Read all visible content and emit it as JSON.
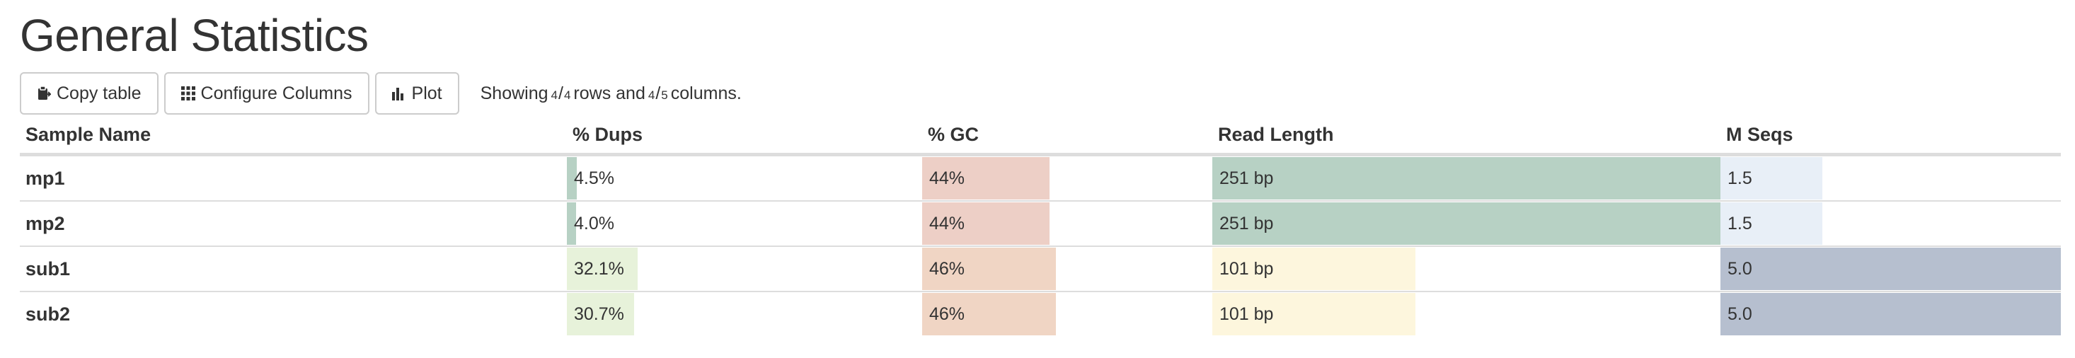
{
  "page": {
    "title": "General Statistics"
  },
  "toolbar": {
    "copy_label": "Copy table",
    "configure_label": "Configure Columns",
    "plot_label": "Plot",
    "status_prefix": "Showing",
    "rows_shown": "4",
    "rows_total": "4",
    "rows_word": "rows and",
    "cols_shown": "4",
    "cols_total": "5",
    "cols_word": "columns."
  },
  "table": {
    "headers": [
      "Sample Name",
      "% Dups",
      "% GC",
      "Read Length",
      "M Seqs"
    ],
    "rows": [
      {
        "name": "mp1",
        "dups": "4.5%",
        "gc": "44%",
        "read_length": "251 bp",
        "mseqs": "1.5",
        "dups_fill": 0.028,
        "gc_fill": 0.44,
        "read_length_fill": 1.0,
        "mseqs_fill": 0.3,
        "dups_color": "#b7d1c4",
        "gc_color": "#edcfc6",
        "read_length_color": "#b7d1c4",
        "mseqs_color": "#e8eff7"
      },
      {
        "name": "mp2",
        "dups": "4.0%",
        "gc": "44%",
        "read_length": "251 bp",
        "mseqs": "1.5",
        "dups_fill": 0.025,
        "gc_fill": 0.44,
        "read_length_fill": 1.0,
        "mseqs_fill": 0.3,
        "dups_color": "#b7d1c4",
        "gc_color": "#edcfc6",
        "read_length_color": "#b7d1c4",
        "mseqs_color": "#e8eff7"
      },
      {
        "name": "sub1",
        "dups": "32.1%",
        "gc": "46%",
        "read_length": "101 bp",
        "mseqs": "5.0",
        "dups_fill": 0.2,
        "gc_fill": 0.46,
        "read_length_fill": 0.4,
        "mseqs_fill": 1.0,
        "dups_color": "#e7f2da",
        "gc_color": "#f0d5c4",
        "read_length_color": "#fdf6dd",
        "mseqs_color": "#b6bfcf"
      },
      {
        "name": "sub2",
        "dups": "30.7%",
        "gc": "46%",
        "read_length": "101 bp",
        "mseqs": "5.0",
        "dups_fill": 0.19,
        "gc_fill": 0.46,
        "read_length_fill": 0.4,
        "mseqs_fill": 1.0,
        "dups_color": "#e7f2da",
        "gc_color": "#f0d5c4",
        "read_length_color": "#fdf6dd",
        "mseqs_color": "#b6bfcf"
      }
    ]
  }
}
